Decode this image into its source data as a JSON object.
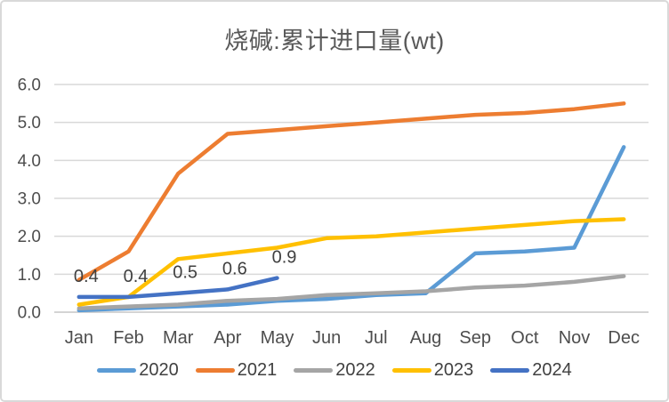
{
  "chart_data": {
    "type": "line",
    "title": "烧碱:累计进口量(wt)",
    "categories": [
      "Jan",
      "Feb",
      "Mar",
      "Apr",
      "May",
      "Jun",
      "Jul",
      "Aug",
      "Sep",
      "Oct",
      "Nov",
      "Dec"
    ],
    "xlabel": "",
    "ylabel": "",
    "ylim": [
      0,
      6
    ],
    "ytick_interval": 1.0,
    "ytick_labels": [
      "0.0",
      "1.0",
      "2.0",
      "3.0",
      "4.0",
      "5.0",
      "6.0"
    ],
    "grid": true,
    "legend_position": "bottom",
    "series": [
      {
        "name": "2020",
        "color": "#5B9BD5",
        "values": [
          0.05,
          0.1,
          0.15,
          0.2,
          0.3,
          0.35,
          0.45,
          0.5,
          1.55,
          1.6,
          1.7,
          4.35
        ]
      },
      {
        "name": "2021",
        "color": "#ED7D31",
        "values": [
          0.85,
          1.6,
          3.65,
          4.7,
          4.8,
          4.9,
          5.0,
          5.1,
          5.2,
          5.25,
          5.35,
          5.5
        ]
      },
      {
        "name": "2022",
        "color": "#A5A5A5",
        "values": [
          0.1,
          0.15,
          0.2,
          0.3,
          0.35,
          0.45,
          0.5,
          0.55,
          0.65,
          0.7,
          0.8,
          0.95
        ]
      },
      {
        "name": "2023",
        "color": "#FFC000",
        "values": [
          0.2,
          0.4,
          1.4,
          1.55,
          1.7,
          1.95,
          2.0,
          2.1,
          2.2,
          2.3,
          2.4,
          2.45
        ]
      },
      {
        "name": "2024",
        "color": "#4472C4",
        "values": [
          0.4,
          0.4,
          0.5,
          0.6,
          0.9
        ],
        "data_labels": [
          "0.4",
          "0.4",
          "0.5",
          "0.6",
          "0.9"
        ]
      }
    ]
  },
  "styles": {
    "title_color": "#595959",
    "axis_text_color": "#4d4d4d",
    "data_label_color": "#404040",
    "legend_text_color": "#404040",
    "gridline_color": "#d9d9d9",
    "axis_line_color": "#c6c6c6",
    "card_border_color": "#d9d9d9",
    "background": "#ffffff"
  }
}
